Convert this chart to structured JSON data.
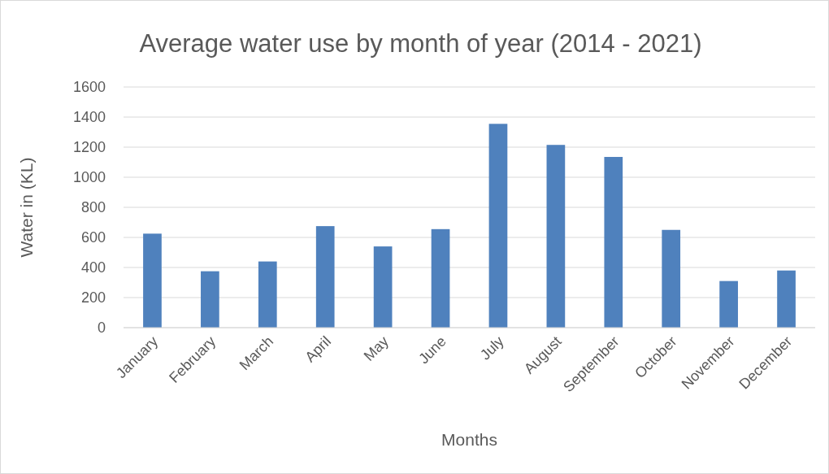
{
  "chart_data": {
    "type": "bar",
    "title": "Average water use by month of year (2014 - 2021)",
    "xlabel": "Months",
    "ylabel": "Water in (KL)",
    "categories": [
      "January",
      "February",
      "March",
      "April",
      "May",
      "June",
      "July",
      "August",
      "September",
      "October",
      "November",
      "December"
    ],
    "values": [
      625,
      375,
      440,
      675,
      540,
      655,
      1355,
      1215,
      1135,
      650,
      310,
      380
    ],
    "color": "#4f81bd",
    "ylim": [
      0,
      1600
    ],
    "yticks": [
      0,
      200,
      400,
      600,
      800,
      1000,
      1200,
      1400,
      1600
    ],
    "grid": "y"
  }
}
